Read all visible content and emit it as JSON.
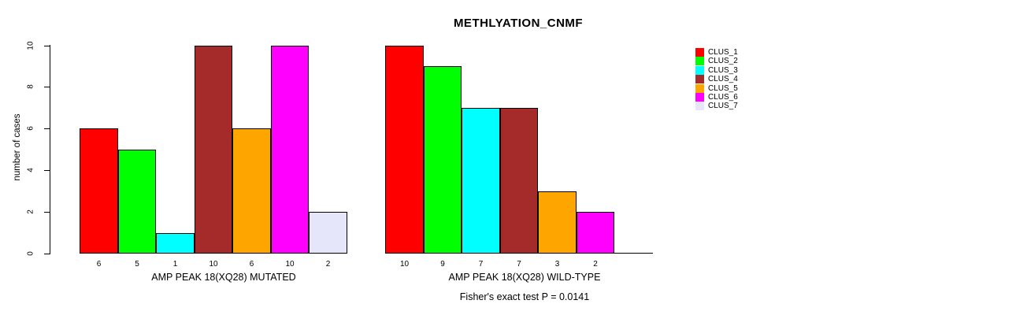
{
  "title": "METHLYATION_CNMF",
  "footer": "Fisher's exact test P = 0.0141",
  "chart_data": {
    "type": "bar",
    "title": "METHLYATION_CNMF",
    "xlabel": "",
    "ylabel": "number of cases",
    "ylim": [
      0,
      10
    ],
    "yticks": [
      0,
      2,
      4,
      6,
      8,
      10
    ],
    "grid": false,
    "legend_position": "right",
    "series_labels": [
      "CLUS_1",
      "CLUS_2",
      "CLUS_3",
      "CLUS_4",
      "CLUS_5",
      "CLUS_6",
      "CLUS_7"
    ],
    "colors": [
      "#FF0000",
      "#00FF00",
      "#00FFFF",
      "#A52A2A",
      "#FFA500",
      "#FF00FF",
      "#E6E6FA"
    ],
    "groups": [
      {
        "label": "AMP PEAK 18(XQ28) MUTATED",
        "values": [
          6,
          5,
          1,
          10,
          6,
          10,
          2
        ]
      },
      {
        "label": "AMP PEAK 18(XQ28) WILD-TYPE",
        "values": [
          10,
          9,
          7,
          7,
          3,
          2,
          0
        ]
      }
    ],
    "annotation": "Fisher's exact test P = 0.0141"
  }
}
